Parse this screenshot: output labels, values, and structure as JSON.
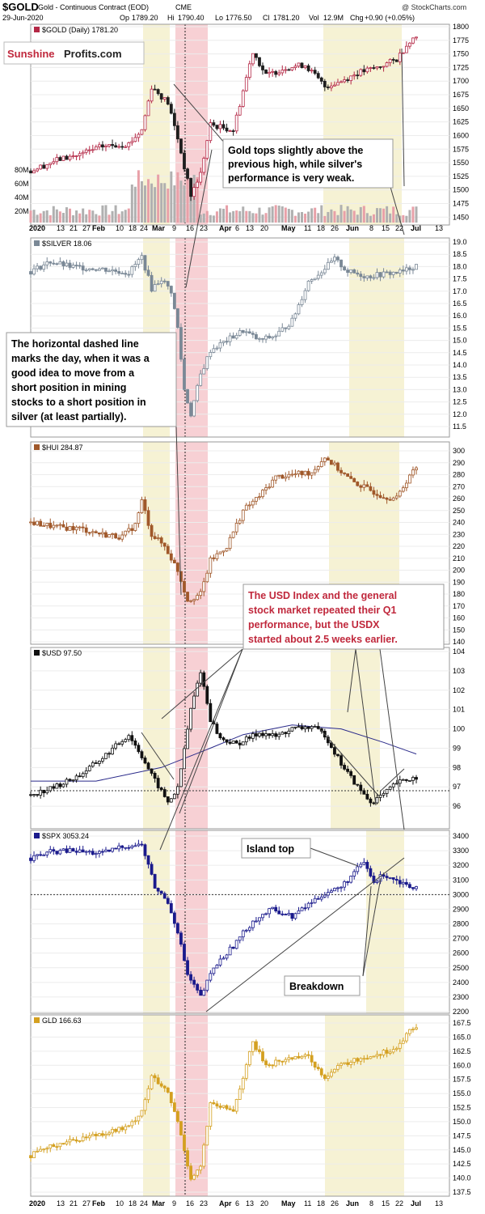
{
  "header": {
    "ticker": "$GOLD",
    "name": "Gold - Continuous Contract (EOD)",
    "exchange": "CME",
    "date": "29-Jun-2020",
    "open_label": "Op",
    "open": "1789.20",
    "high_label": "Hi",
    "high": "1790.40",
    "low_label": "Lo",
    "low": "1776.50",
    "close_label": "Cl",
    "close": "1781.20",
    "vol_label": "Vol",
    "vol": "12.9M",
    "chg_label": "Chg",
    "chg": "+0.90 (+0.05%)",
    "credit": "@ StockCharts.com"
  },
  "watermark": {
    "part1": "Sunshine",
    "part2": "Profits.com"
  },
  "colors": {
    "gold_up": "#b42846",
    "gold_down": "#1e1e1e",
    "silver": "#7a8896",
    "hui": "#a0582a",
    "usd": "#111111",
    "usd_ma": "#2a2a8a",
    "spx": "#1a1a8c",
    "gld": "#d4a020",
    "yellow_band": "#f6f2d4",
    "red_band": "#f6c8cc",
    "volume": "#b0b0b0",
    "volume_red": "#e8a0a8"
  },
  "annotations": {
    "gold_tops": [
      "Gold tops slightly above the",
      "previous high, while silver's",
      "performance is very weak."
    ],
    "dashed_line": [
      "The horizontal dashed line",
      "marks the day, when it was a",
      "good idea to move from a",
      "short position in mining",
      "stocks to a short position in",
      "silver (at least partially)."
    ],
    "usd_index": [
      "The USD Index and the general",
      "stock market repeated their Q1",
      "performance, but  the USDX",
      "started about 2.5 weeks earlier."
    ],
    "island_top": "Island top",
    "breakdown": "Breakdown"
  },
  "chart_data": [
    {
      "type": "candlestick",
      "label": "$GOLD (Daily) 1781.20",
      "ylim": [
        1440,
        1800
      ],
      "ticks": [
        "1450",
        "1475",
        "1500",
        "1525",
        "1550",
        "1575",
        "1600",
        "1625",
        "1650",
        "1675",
        "1700",
        "1725",
        "1750",
        "1775",
        "1800"
      ],
      "volume_ticks": [
        "20M",
        "40M",
        "60M",
        "80M"
      ],
      "anchors": [
        [
          0,
          1535
        ],
        [
          8,
          1555
        ],
        [
          15,
          1565
        ],
        [
          22,
          1580
        ],
        [
          30,
          1585
        ],
        [
          34,
          1610
        ],
        [
          37,
          1690
        ],
        [
          42,
          1660
        ],
        [
          45,
          1595
        ],
        [
          49,
          1490
        ],
        [
          52,
          1530
        ],
        [
          55,
          1620
        ],
        [
          62,
          1610
        ],
        [
          68,
          1755
        ],
        [
          72,
          1710
        ],
        [
          78,
          1725
        ],
        [
          84,
          1730
        ],
        [
          90,
          1690
        ],
        [
          95,
          1700
        ],
        [
          100,
          1715
        ],
        [
          106,
          1725
        ],
        [
          112,
          1740
        ],
        [
          116,
          1775
        ],
        [
          118,
          1781.2
        ]
      ]
    },
    {
      "type": "candlestick",
      "label": "$SILVER 18.06",
      "ylim": [
        11.5,
        19.0
      ],
      "ticks": [
        "11.5",
        "12.0",
        "12.5",
        "13.0",
        "13.5",
        "14.0",
        "14.5",
        "15.0",
        "15.5",
        "16.0",
        "16.5",
        "17.0",
        "17.5",
        "18.0",
        "18.5",
        "19.0"
      ],
      "anchors": [
        [
          0,
          17.8
        ],
        [
          6,
          18.2
        ],
        [
          12,
          18.0
        ],
        [
          22,
          17.9
        ],
        [
          30,
          17.75
        ],
        [
          34,
          18.4
        ],
        [
          37,
          17.1
        ],
        [
          40,
          17.5
        ],
        [
          43,
          17.0
        ],
        [
          45,
          15.5
        ],
        [
          47,
          13.0
        ],
        [
          49,
          12.0
        ],
        [
          52,
          13.6
        ],
        [
          55,
          14.6
        ],
        [
          60,
          15.0
        ],
        [
          65,
          15.4
        ],
        [
          70,
          15.0
        ],
        [
          75,
          15.2
        ],
        [
          80,
          15.8
        ],
        [
          85,
          17.4
        ],
        [
          88,
          17.7
        ],
        [
          93,
          18.3
        ],
        [
          97,
          17.8
        ],
        [
          103,
          17.6
        ],
        [
          108,
          17.7
        ],
        [
          114,
          17.8
        ],
        [
          118,
          18.06
        ]
      ]
    },
    {
      "type": "candlestick",
      "label": "$HUI 284.87",
      "ylim": [
        140,
        300
      ],
      "ticks": [
        "140",
        "150",
        "160",
        "170",
        "180",
        "190",
        "200",
        "210",
        "220",
        "230",
        "240",
        "250",
        "260",
        "270",
        "280",
        "290",
        "300"
      ],
      "anchors": [
        [
          0,
          240
        ],
        [
          8,
          236
        ],
        [
          15,
          235
        ],
        [
          22,
          230
        ],
        [
          28,
          228
        ],
        [
          32,
          238
        ],
        [
          34,
          258
        ],
        [
          37,
          230
        ],
        [
          41,
          220
        ],
        [
          45,
          200
        ],
        [
          48,
          175
        ],
        [
          52,
          180
        ],
        [
          55,
          208
        ],
        [
          60,
          220
        ],
        [
          65,
          250
        ],
        [
          70,
          262
        ],
        [
          75,
          278
        ],
        [
          80,
          280
        ],
        [
          86,
          282
        ],
        [
          90,
          295
        ],
        [
          94,
          285
        ],
        [
          98,
          275
        ],
        [
          103,
          268
        ],
        [
          108,
          262
        ],
        [
          112,
          260
        ],
        [
          116,
          280
        ],
        [
          118,
          284.87
        ]
      ]
    },
    {
      "type": "candlestick",
      "label": "$USD 97.50",
      "ylim": [
        95,
        104
      ],
      "ticks": [
        "96",
        "97",
        "98",
        "99",
        "100",
        "101",
        "102",
        "103",
        "104"
      ],
      "anchors": [
        [
          0,
          96.6
        ],
        [
          6,
          96.9
        ],
        [
          10,
          97.2
        ],
        [
          15,
          97.6
        ],
        [
          22,
          98.5
        ],
        [
          28,
          99.4
        ],
        [
          30,
          99.7
        ],
        [
          34,
          98.6
        ],
        [
          37,
          97.6
        ],
        [
          42,
          96.2
        ],
        [
          45,
          96.9
        ],
        [
          49,
          101.0
        ],
        [
          52,
          103.0
        ],
        [
          55,
          100.5
        ],
        [
          58,
          99.5
        ],
        [
          63,
          99.2
        ],
        [
          70,
          99.8
        ],
        [
          75,
          99.6
        ],
        [
          80,
          100.0
        ],
        [
          86,
          100.1
        ],
        [
          90,
          99.7
        ],
        [
          95,
          98.2
        ],
        [
          100,
          97.0
        ],
        [
          104,
          96.2
        ],
        [
          108,
          96.6
        ],
        [
          112,
          97.2
        ],
        [
          116,
          97.4
        ],
        [
          118,
          97.5
        ]
      ],
      "moving_average": [
        [
          0,
          97.3
        ],
        [
          20,
          97.3
        ],
        [
          40,
          98.0
        ],
        [
          55,
          99.0
        ],
        [
          65,
          99.7
        ],
        [
          80,
          100.2
        ],
        [
          95,
          100.0
        ],
        [
          108,
          99.3
        ],
        [
          118,
          98.7
        ]
      ],
      "dotted_level": 96.8
    },
    {
      "type": "candlestick",
      "label": "$SPX 3053.24",
      "ylim": [
        2200,
        3400
      ],
      "ticks": [
        "2200",
        "2300",
        "2400",
        "2500",
        "2600",
        "2700",
        "2800",
        "2900",
        "3000",
        "3100",
        "3200",
        "3300",
        "3400"
      ],
      "anchors": [
        [
          0,
          3250
        ],
        [
          6,
          3290
        ],
        [
          12,
          3300
        ],
        [
          22,
          3280
        ],
        [
          28,
          3330
        ],
        [
          34,
          3340
        ],
        [
          36,
          3200
        ],
        [
          38,
          3050
        ],
        [
          42,
          2950
        ],
        [
          45,
          2750
        ],
        [
          48,
          2450
        ],
        [
          52,
          2300
        ],
        [
          56,
          2500
        ],
        [
          62,
          2650
        ],
        [
          68,
          2820
        ],
        [
          74,
          2900
        ],
        [
          80,
          2850
        ],
        [
          86,
          2950
        ],
        [
          90,
          3010
        ],
        [
          95,
          3050
        ],
        [
          99,
          3150
        ],
        [
          102,
          3220
        ],
        [
          105,
          3080
        ],
        [
          108,
          3140
        ],
        [
          112,
          3100
        ],
        [
          116,
          3060
        ],
        [
          118,
          3053.24
        ]
      ],
      "dotted_level": 3000
    },
    {
      "type": "candlestick",
      "label": "GLD 166.63",
      "ylim": [
        137.5,
        167.5
      ],
      "ticks": [
        "137.5",
        "140.0",
        "142.5",
        "145.0",
        "147.5",
        "150.0",
        "152.5",
        "155.0",
        "157.5",
        "160.0",
        "162.5",
        "165.0",
        "167.5"
      ],
      "anchors": [
        [
          0,
          144
        ],
        [
          8,
          146
        ],
        [
          15,
          147
        ],
        [
          22,
          148
        ],
        [
          30,
          149
        ],
        [
          34,
          152
        ],
        [
          37,
          158
        ],
        [
          42,
          155
        ],
        [
          45,
          150
        ],
        [
          49,
          140
        ],
        [
          52,
          142
        ],
        [
          55,
          153
        ],
        [
          62,
          152
        ],
        [
          68,
          164
        ],
        [
          72,
          160
        ],
        [
          78,
          161
        ],
        [
          84,
          162
        ],
        [
          90,
          158
        ],
        [
          95,
          160
        ],
        [
          100,
          161
        ],
        [
          106,
          162
        ],
        [
          112,
          163
        ],
        [
          116,
          166
        ],
        [
          118,
          166.63
        ]
      ]
    }
  ],
  "date_axis": {
    "labels": [
      "2020",
      "13",
      "21",
      "27",
      "Feb",
      "10",
      "18",
      "24",
      "Mar",
      "9",
      "16",
      "23",
      "Apr",
      "6",
      "13",
      "20",
      "May",
      "11",
      "18",
      "26",
      "Jun",
      "8",
      "15",
      "22",
      "Jul",
      "13"
    ],
    "bold": [
      "2020",
      "Feb",
      "Mar",
      "Apr",
      "May",
      "Jun",
      "Jul"
    ]
  }
}
